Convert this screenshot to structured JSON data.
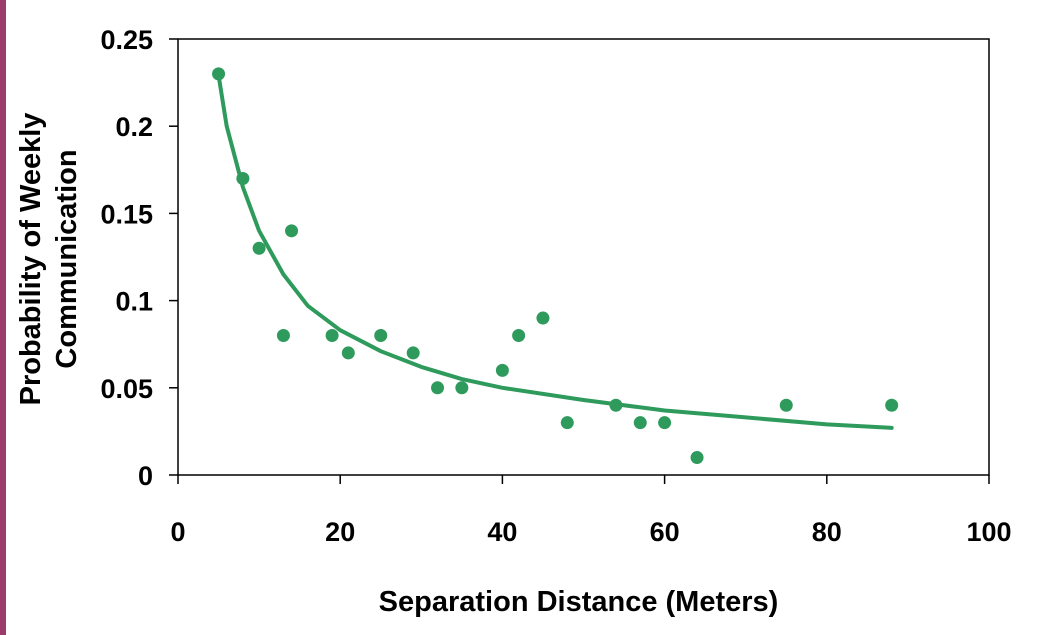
{
  "colors": {
    "marker": "#2e9a5c",
    "trendline": "#2e9a5c",
    "axis": "#000000",
    "left_stripe": "#9c3c6a"
  },
  "chart_data": {
    "type": "scatter",
    "xlabel": "Separation Distance  (Meters)",
    "ylabel_lines": [
      "Probability of Weekly",
      "Communication"
    ],
    "xlim": [
      0,
      100
    ],
    "ylim": [
      0,
      0.25
    ],
    "x_ticks": [
      {
        "value": 0,
        "label": "0"
      },
      {
        "value": 20,
        "label": "20"
      },
      {
        "value": 40,
        "label": "40"
      },
      {
        "value": 60,
        "label": "60"
      },
      {
        "value": 80,
        "label": "80"
      },
      {
        "value": 100,
        "label": "100"
      }
    ],
    "y_ticks": [
      {
        "value": 0,
        "label": "0"
      },
      {
        "value": 0.05,
        "label": "0.05"
      },
      {
        "value": 0.1,
        "label": "0.1"
      },
      {
        "value": 0.15,
        "label": "0.15"
      },
      {
        "value": 0.2,
        "label": "0.2"
      },
      {
        "value": 0.25,
        "label": "0.25"
      }
    ],
    "grid": false,
    "points": [
      {
        "x": 5,
        "y": 0.23
      },
      {
        "x": 8,
        "y": 0.17
      },
      {
        "x": 10,
        "y": 0.13
      },
      {
        "x": 13,
        "y": 0.08
      },
      {
        "x": 14,
        "y": 0.14
      },
      {
        "x": 19,
        "y": 0.08
      },
      {
        "x": 21,
        "y": 0.07
      },
      {
        "x": 25,
        "y": 0.08
      },
      {
        "x": 29,
        "y": 0.07
      },
      {
        "x": 32,
        "y": 0.05
      },
      {
        "x": 35,
        "y": 0.05
      },
      {
        "x": 40,
        "y": 0.06
      },
      {
        "x": 42,
        "y": 0.08
      },
      {
        "x": 45,
        "y": 0.09
      },
      {
        "x": 48,
        "y": 0.03
      },
      {
        "x": 54,
        "y": 0.04
      },
      {
        "x": 57,
        "y": 0.03
      },
      {
        "x": 60,
        "y": 0.03
      },
      {
        "x": 64,
        "y": 0.01
      },
      {
        "x": 75,
        "y": 0.04
      },
      {
        "x": 88,
        "y": 0.04
      }
    ],
    "trendline": {
      "type": "power",
      "x_range": [
        5,
        88
      ],
      "points": [
        {
          "x": 5,
          "y": 0.229
        },
        {
          "x": 6,
          "y": 0.2
        },
        {
          "x": 8,
          "y": 0.165
        },
        {
          "x": 10,
          "y": 0.14
        },
        {
          "x": 13,
          "y": 0.115
        },
        {
          "x": 16,
          "y": 0.097
        },
        {
          "x": 20,
          "y": 0.083
        },
        {
          "x": 25,
          "y": 0.071
        },
        {
          "x": 30,
          "y": 0.062
        },
        {
          "x": 35,
          "y": 0.055
        },
        {
          "x": 40,
          "y": 0.05
        },
        {
          "x": 50,
          "y": 0.043
        },
        {
          "x": 60,
          "y": 0.037
        },
        {
          "x": 70,
          "y": 0.033
        },
        {
          "x": 80,
          "y": 0.029
        },
        {
          "x": 88,
          "y": 0.027
        }
      ]
    }
  }
}
